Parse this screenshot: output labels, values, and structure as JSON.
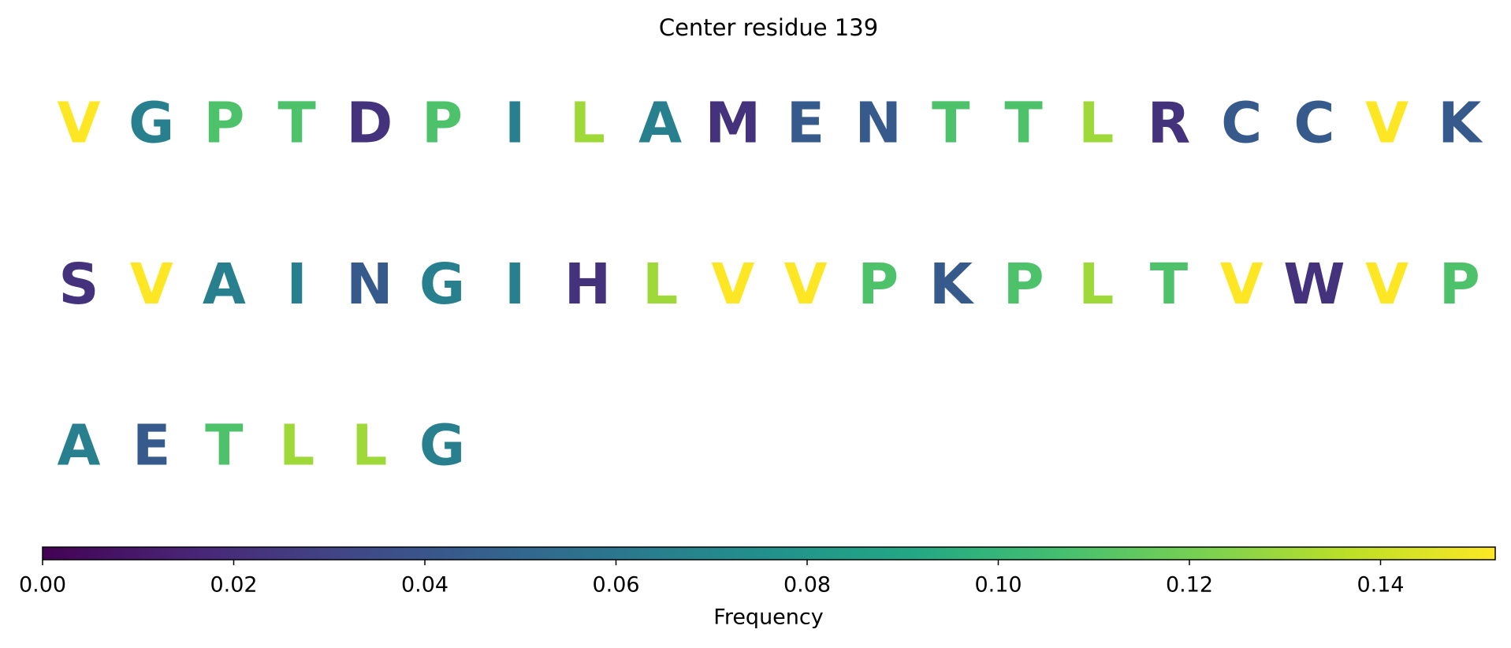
{
  "chart_data": {
    "type": "sequence",
    "title": "Center residue 139",
    "letters": [
      "V",
      "G",
      "P",
      "T",
      "D",
      "P",
      "I",
      "L",
      "A",
      "M",
      "E",
      "N",
      "T",
      "T",
      "L",
      "R",
      "C",
      "C",
      "V",
      "K",
      "S",
      "V",
      "A",
      "I",
      "N",
      "G",
      "I",
      "H",
      "L",
      "V",
      "V",
      "P",
      "K",
      "P",
      "L",
      "T",
      "V",
      "W",
      "V",
      "P",
      "A",
      "E",
      "T",
      "L",
      "L",
      "G"
    ],
    "values": [
      0.152,
      0.065,
      0.109,
      0.109,
      0.022,
      0.109,
      0.065,
      0.13,
      0.065,
      0.022,
      0.043,
      0.043,
      0.109,
      0.109,
      0.13,
      0.022,
      0.043,
      0.043,
      0.152,
      0.043,
      0.022,
      0.152,
      0.065,
      0.065,
      0.043,
      0.065,
      0.065,
      0.022,
      0.13,
      0.152,
      0.152,
      0.109,
      0.043,
      0.109,
      0.13,
      0.109,
      0.152,
      0.022,
      0.152,
      0.109,
      0.065,
      0.043,
      0.109,
      0.13,
      0.13,
      0.065
    ],
    "colormap": "viridis",
    "clim": [
      0,
      0.152
    ],
    "cticks": [
      {
        "value": 0,
        "label": "0.00"
      },
      {
        "value": 0.02,
        "label": "0.02"
      },
      {
        "value": 0.04,
        "label": "0.04"
      },
      {
        "value": 0.06,
        "label": "0.06"
      },
      {
        "value": 0.08,
        "label": "0.08"
      },
      {
        "value": 0.1,
        "label": "0.10"
      },
      {
        "value": 0.12,
        "label": "0.12"
      },
      {
        "value": 0.14,
        "label": "0.14"
      }
    ],
    "colorbar_label": "Frequency"
  }
}
